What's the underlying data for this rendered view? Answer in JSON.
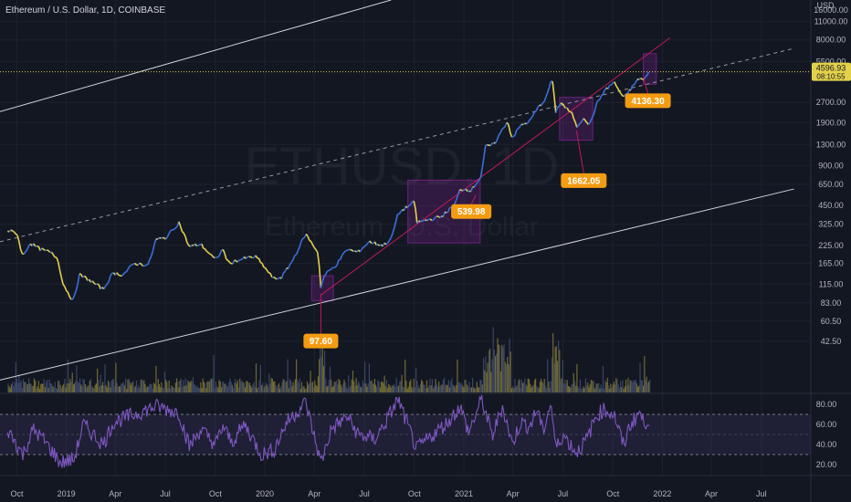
{
  "chart_data": {
    "type": "candlestick",
    "header": "Ethereum / U.S. Dollar, 1D, COINBASE",
    "watermark_symbol": "ETHUSD, 1D",
    "watermark_name": "Ethereum / U.S. Dollar",
    "price_scale": "log",
    "y_unit": "USD",
    "y_ticks": [
      "16000.00",
      "11000.00",
      "8000.00",
      "5500.00",
      "2700.00",
      "1900.00",
      "1300.00",
      "900.00",
      "650.00",
      "450.00",
      "325.00",
      "225.00",
      "165.00",
      "115.00",
      "83.00",
      "60.50",
      "42.50"
    ],
    "x_ticks": [
      "Oct",
      "2019",
      "Apr",
      "Jul",
      "Oct",
      "2020",
      "Apr",
      "Jul",
      "Oct",
      "2021",
      "Apr",
      "Jul",
      "Oct",
      "2022",
      "Apr",
      "Jul"
    ],
    "last_price": "4596.93",
    "countdown": "08:10:55",
    "price_path": [
      [
        "2018-08-15",
        290
      ],
      [
        "2018-09-01",
        280
      ],
      [
        "2018-09-12",
        185
      ],
      [
        "2018-09-25",
        235
      ],
      [
        "2018-10-15",
        210
      ],
      [
        "2018-11-01",
        200
      ],
      [
        "2018-11-15",
        180
      ],
      [
        "2018-11-25",
        115
      ],
      [
        "2018-12-14",
        85
      ],
      [
        "2018-12-25",
        135
      ],
      [
        "2019-01-10",
        125
      ],
      [
        "2019-02-07",
        105
      ],
      [
        "2019-02-25",
        140
      ],
      [
        "2019-03-15",
        135
      ],
      [
        "2019-04-05",
        165
      ],
      [
        "2019-05-01",
        160
      ],
      [
        "2019-05-15",
        250
      ],
      [
        "2019-06-01",
        255
      ],
      [
        "2019-06-26",
        335
      ],
      [
        "2019-07-15",
        220
      ],
      [
        "2019-08-05",
        230
      ],
      [
        "2019-09-01",
        175
      ],
      [
        "2019-09-15",
        210
      ],
      [
        "2019-09-25",
        165
      ],
      [
        "2019-10-25",
        180
      ],
      [
        "2019-11-15",
        185
      ],
      [
        "2019-12-18",
        125
      ],
      [
        "2020-01-01",
        130
      ],
      [
        "2020-01-20",
        170
      ],
      [
        "2020-02-14",
        275
      ],
      [
        "2020-02-28",
        225
      ],
      [
        "2020-03-08",
        200
      ],
      [
        "2020-03-13",
        110
      ],
      [
        "2020-03-20",
        135
      ],
      [
        "2020-04-10",
        160
      ],
      [
        "2020-04-30",
        210
      ],
      [
        "2020-05-20",
        200
      ],
      [
        "2020-06-10",
        240
      ],
      [
        "2020-07-05",
        225
      ],
      [
        "2020-07-20",
        250
      ],
      [
        "2020-08-02",
        390
      ],
      [
        "2020-08-15",
        430
      ],
      [
        "2020-09-02",
        480
      ],
      [
        "2020-09-05",
        335
      ],
      [
        "2020-10-01",
        355
      ],
      [
        "2020-10-20",
        370
      ],
      [
        "2020-11-15",
        460
      ],
      [
        "2020-11-24",
        600
      ],
      [
        "2020-12-15",
        590
      ],
      [
        "2021-01-01",
        740
      ],
      [
        "2021-01-10",
        1250
      ],
      [
        "2021-01-25",
        1300
      ],
      [
        "2021-02-19",
        1950
      ],
      [
        "2021-02-28",
        1450
      ],
      [
        "2021-03-15",
        1800
      ],
      [
        "2021-04-01",
        1950
      ],
      [
        "2021-04-16",
        2450
      ],
      [
        "2021-05-01",
        2900
      ],
      [
        "2021-05-12",
        4150
      ],
      [
        "2021-05-19",
        2300
      ],
      [
        "2021-05-28",
        2700
      ],
      [
        "2021-06-20",
        2150
      ],
      [
        "2021-06-26",
        1750
      ],
      [
        "2021-07-10",
        2100
      ],
      [
        "2021-07-20",
        1800
      ],
      [
        "2021-08-01",
        2550
      ],
      [
        "2021-08-15",
        3250
      ],
      [
        "2021-09-03",
        3850
      ],
      [
        "2021-09-21",
        2900
      ],
      [
        "2021-10-01",
        3300
      ],
      [
        "2021-10-20",
        4150
      ],
      [
        "2021-10-27",
        3950
      ],
      [
        "2021-11-08",
        4596.93
      ]
    ],
    "rsi": {
      "ticks": [
        "80.00",
        "60.00",
        "40.00",
        "20.00"
      ],
      "upper_band": 70,
      "lower_band": 30,
      "points": [
        [
          "2018-08-15",
          55
        ],
        [
          "2018-09-12",
          30
        ],
        [
          "2018-10-01",
          55
        ],
        [
          "2018-10-20",
          45
        ],
        [
          "2018-11-20",
          22
        ],
        [
          "2018-12-15",
          25
        ],
        [
          "2019-01-01",
          60
        ],
        [
          "2019-02-07",
          40
        ],
        [
          "2019-02-25",
          62
        ],
        [
          "2019-04-05",
          70
        ],
        [
          "2019-05-15",
          78
        ],
        [
          "2019-06-26",
          72
        ],
        [
          "2019-07-15",
          38
        ],
        [
          "2019-08-05",
          55
        ],
        [
          "2019-09-01",
          40
        ],
        [
          "2019-09-15",
          58
        ],
        [
          "2019-10-01",
          42
        ],
        [
          "2019-10-25",
          60
        ],
        [
          "2019-11-25",
          30
        ],
        [
          "2019-12-18",
          35
        ],
        [
          "2020-01-10",
          62
        ],
        [
          "2020-02-14",
          82
        ],
        [
          "2020-03-13",
          22
        ],
        [
          "2020-04-01",
          55
        ],
        [
          "2020-05-01",
          68
        ],
        [
          "2020-05-20",
          50
        ],
        [
          "2020-06-20",
          45
        ],
        [
          "2020-07-10",
          62
        ],
        [
          "2020-08-02",
          85
        ],
        [
          "2020-09-05",
          35
        ],
        [
          "2020-10-01",
          48
        ],
        [
          "2020-11-01",
          62
        ],
        [
          "2020-11-24",
          78
        ],
        [
          "2020-12-10",
          52
        ],
        [
          "2021-01-03",
          85
        ],
        [
          "2021-01-22",
          48
        ],
        [
          "2021-02-10",
          78
        ],
        [
          "2021-02-28",
          40
        ],
        [
          "2021-03-15",
          62
        ],
        [
          "2021-04-01",
          58
        ],
        [
          "2021-04-16",
          76
        ],
        [
          "2021-04-25",
          52
        ],
        [
          "2021-05-10",
          82
        ],
        [
          "2021-05-19",
          36
        ],
        [
          "2021-06-01",
          50
        ],
        [
          "2021-06-26",
          32
        ],
        [
          "2021-07-15",
          45
        ],
        [
          "2021-08-01",
          68
        ],
        [
          "2021-08-15",
          75
        ],
        [
          "2021-09-03",
          70
        ],
        [
          "2021-09-21",
          38
        ],
        [
          "2021-10-01",
          58
        ],
        [
          "2021-10-20",
          72
        ],
        [
          "2021-10-27",
          62
        ],
        [
          "2021-11-08",
          65
        ]
      ]
    },
    "annotations": [
      {
        "name": "callout-97",
        "label": "97.60",
        "date": "2020-03-13",
        "price": 97.6
      },
      {
        "name": "callout-539",
        "label": "539.98",
        "date": "2020-12-23",
        "price": 539.98
      },
      {
        "name": "callout-1662",
        "label": "1662.05",
        "date": "2021-06-26",
        "price": 1662.05
      },
      {
        "name": "callout-4136",
        "label": "4136.30",
        "date": "2021-10-27",
        "price": 4136.3
      }
    ],
    "boxes": [
      {
        "name": "zone-box-march-2020",
        "from": "2020-02-25",
        "to": "2020-04-05",
        "low": 86,
        "high": 133
      },
      {
        "name": "zone-box-late-2020",
        "from": "2020-08-20",
        "to": "2020-12-31",
        "low": 235,
        "high": 700
      },
      {
        "name": "zone-box-mid-2021",
        "from": "2021-05-26",
        "to": "2021-07-26",
        "low": 1400,
        "high": 2950
      },
      {
        "name": "zone-box-nov-2021",
        "from": "2021-10-27",
        "to": "2021-11-20",
        "low": 3700,
        "high": 6300
      }
    ],
    "trendlines": [
      {
        "name": "channel-upper-line",
        "style": "solid",
        "color": "#d1d4dc",
        "from": [
          "2018-08-01",
          2300
        ],
        "to": [
          "2020-07-20",
          16000
        ]
      },
      {
        "name": "channel-mid-line",
        "style": "dashed",
        "color": "#9598a1",
        "from": [
          "2018-08-01",
          240
        ],
        "to": [
          "2022-07-31",
          6900
        ]
      },
      {
        "name": "channel-lower-line",
        "style": "solid",
        "color": "#d1d4dc",
        "from": [
          "2018-08-01",
          21.7
        ],
        "to": [
          "2022-07-31",
          600
        ]
      },
      {
        "name": "support-trend-line",
        "style": "solid",
        "color": "#c2185b",
        "from": [
          "2020-03-13",
          95
        ],
        "to": [
          "2021-12-15",
          8300
        ]
      }
    ],
    "colors": {
      "background": "#131722",
      "price_up": "#3b6fd9",
      "price_down": "#e3d14a",
      "rsi_line": "#7e57c2",
      "box_fill": "#9c27b0",
      "callout": "#f39c12"
    }
  }
}
